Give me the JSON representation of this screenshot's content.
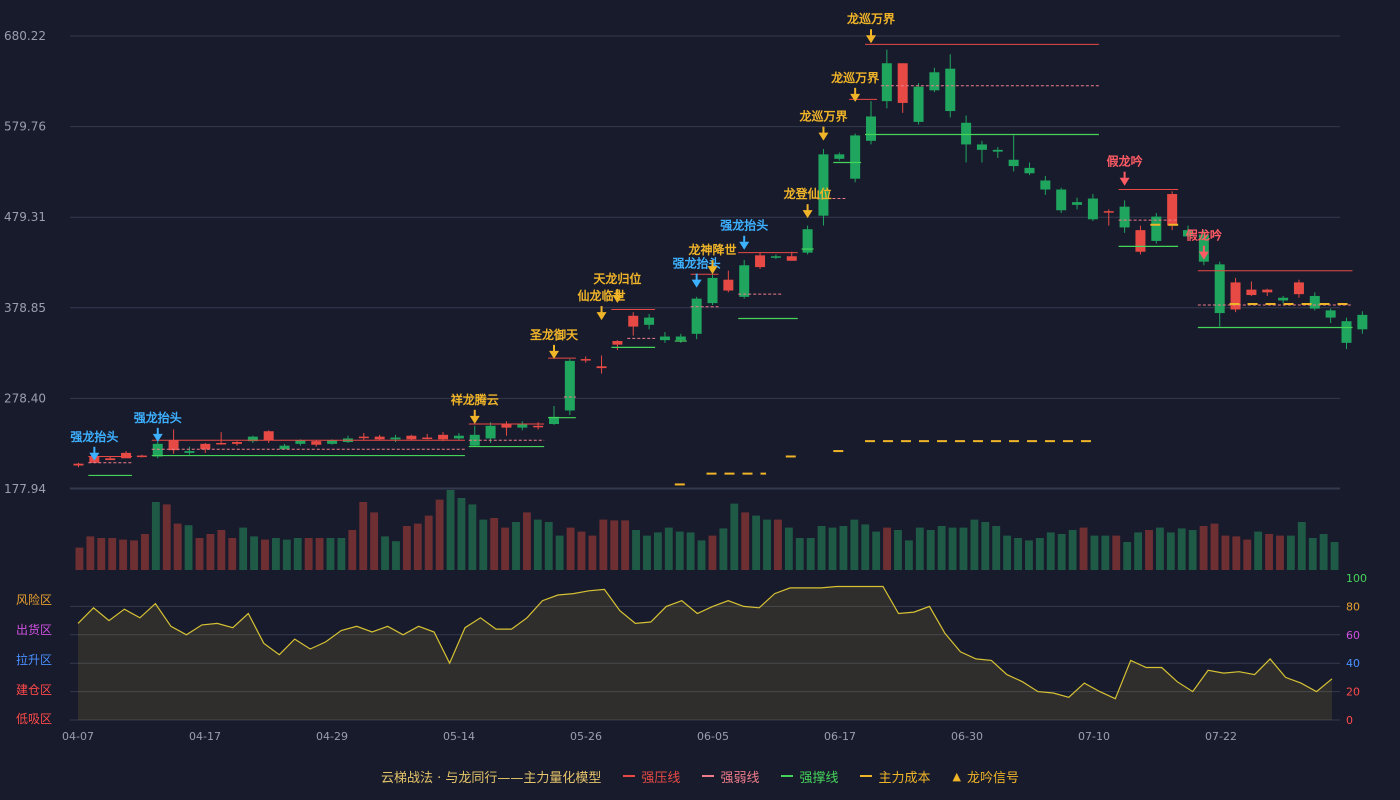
{
  "chart_data": {
    "type": "candlestick",
    "price_ticks": [
      "680.22",
      "579.76",
      "479.31",
      "378.85",
      "278.40",
      "177.94"
    ],
    "ylim": [
      177.94,
      680.22
    ],
    "date_ticks": [
      "04-07",
      "04-17",
      "04-29",
      "05-14",
      "05-26",
      "06-05",
      "06-17",
      "06-30",
      "07-10",
      "07-22"
    ],
    "candles": [
      [
        204,
        206,
        202,
        207
      ],
      [
        207,
        214,
        208,
        216
      ],
      [
        210,
        212,
        211,
        214
      ],
      [
        212,
        218,
        213,
        220
      ],
      [
        214,
        215,
        213,
        216
      ],
      [
        228,
        214,
        212,
        231
      ],
      [
        221,
        232,
        217,
        244
      ],
      [
        220,
        218,
        216,
        225
      ],
      [
        222,
        228,
        218,
        229
      ],
      [
        228,
        229,
        227,
        241
      ],
      [
        228,
        230,
        226,
        231
      ],
      [
        236,
        231,
        229,
        237
      ],
      [
        232,
        242,
        229,
        243
      ],
      [
        226,
        222,
        222,
        228
      ],
      [
        232,
        228,
        226,
        233
      ],
      [
        227,
        231,
        225,
        232
      ],
      [
        232,
        228,
        227,
        233
      ],
      [
        234,
        230,
        229,
        237
      ],
      [
        235,
        236,
        232,
        240
      ],
      [
        233,
        236,
        232,
        238
      ],
      [
        235,
        233,
        230,
        238
      ],
      [
        233,
        237,
        232,
        238
      ],
      [
        235,
        235,
        233,
        239
      ],
      [
        233,
        238,
        231,
        241
      ],
      [
        237,
        234,
        232,
        240
      ],
      [
        238,
        226,
        225,
        248
      ],
      [
        248,
        234,
        229,
        252
      ],
      [
        246,
        250,
        237,
        253
      ],
      [
        250,
        246,
        243,
        253
      ],
      [
        248,
        248,
        244,
        252
      ],
      [
        258,
        250,
        249,
        270
      ],
      [
        320,
        265,
        260,
        322
      ],
      [
        321,
        322,
        318,
        325
      ],
      [
        312,
        314,
        306,
        326
      ],
      [
        338,
        342,
        332,
        343
      ],
      [
        358,
        370,
        348,
        374
      ],
      [
        368,
        360,
        355,
        372
      ],
      [
        347,
        343,
        340,
        352
      ],
      [
        347,
        343,
        340,
        350
      ],
      [
        389,
        350,
        344,
        391
      ],
      [
        412,
        384,
        382,
        420
      ],
      [
        398,
        410,
        396,
        420
      ],
      [
        426,
        391,
        389,
        432
      ],
      [
        424,
        437,
        422,
        440
      ],
      [
        436,
        435,
        433,
        438
      ],
      [
        431,
        436,
        433,
        441
      ],
      [
        466,
        440,
        438,
        470
      ],
      [
        549,
        481,
        470,
        555
      ],
      [
        549,
        544,
        542,
        551
      ],
      [
        570,
        522,
        518,
        572
      ],
      [
        591,
        564,
        560,
        608
      ],
      [
        650,
        608,
        600,
        665
      ],
      [
        606,
        650,
        595,
        650
      ],
      [
        624,
        585,
        582,
        628
      ],
      [
        640,
        620,
        618,
        645
      ],
      [
        644,
        597,
        590,
        660
      ],
      [
        584,
        560,
        540,
        592
      ],
      [
        560,
        554,
        540,
        564
      ],
      [
        554,
        552,
        545,
        557
      ],
      [
        543,
        536,
        530,
        570
      ],
      [
        534,
        528,
        526,
        540
      ],
      [
        520,
        510,
        504,
        525
      ],
      [
        510,
        487,
        484,
        512
      ],
      [
        496,
        493,
        488,
        501
      ],
      [
        500,
        477,
        475,
        505
      ],
      [
        485,
        486,
        470,
        488
      ],
      [
        491,
        468,
        462,
        498
      ],
      [
        441,
        465,
        438,
        470
      ],
      [
        480,
        453,
        450,
        484
      ],
      [
        470,
        505,
        465,
        508
      ],
      [
        465,
        458,
        454,
        470
      ],
      [
        460,
        430,
        426,
        465
      ],
      [
        427,
        373,
        358,
        430
      ],
      [
        377,
        407,
        374,
        412
      ],
      [
        393,
        399,
        392,
        408
      ],
      [
        396,
        399,
        392,
        400
      ],
      [
        390,
        387,
        384,
        392
      ],
      [
        394,
        407,
        390,
        410
      ],
      [
        392,
        378,
        376,
        396
      ],
      [
        376,
        368,
        362,
        378
      ],
      [
        364,
        340,
        333,
        368
      ],
      [
        371,
        355,
        350,
        375
      ]
    ],
    "volume": [
      28,
      42,
      40,
      40,
      38,
      37,
      45,
      85,
      82,
      58,
      56,
      40,
      45,
      50,
      40,
      53,
      42,
      38,
      40,
      38,
      40,
      40,
      40,
      40,
      40,
      50,
      85,
      72,
      42,
      36,
      55,
      58,
      68,
      88,
      100,
      90,
      82,
      63,
      65,
      53,
      60,
      72,
      63,
      60,
      43,
      53,
      48,
      43,
      63,
      62,
      62,
      50,
      43,
      47,
      53,
      48,
      47,
      37,
      43,
      52,
      83,
      72,
      68,
      63,
      63,
      53,
      40,
      40,
      55,
      53,
      55,
      63,
      57,
      48,
      53,
      50,
      37,
      53,
      50,
      55,
      53,
      53,
      63,
      60,
      55,
      43,
      40,
      37,
      40,
      47,
      45,
      50,
      53,
      43,
      43,
      43,
      35,
      47,
      50,
      53,
      47,
      52,
      50,
      55,
      58,
      43,
      42,
      38,
      48,
      45,
      43,
      43,
      60,
      40,
      45,
      35
    ],
    "risk": [
      68,
      79,
      70,
      78,
      72,
      82,
      66,
      60,
      67,
      68,
      65,
      75,
      54,
      46,
      57,
      50,
      55,
      63,
      66,
      62,
      66,
      60,
      66,
      62,
      40,
      65,
      72,
      64,
      64,
      72,
      84,
      88,
      89,
      91,
      92,
      77,
      68,
      69,
      80,
      84,
      75,
      80,
      84,
      80,
      79,
      89,
      93,
      93,
      93,
      94,
      94,
      94,
      94,
      75,
      76,
      80,
      61,
      48,
      43,
      42,
      32,
      27,
      20,
      19,
      16,
      26,
      20,
      15,
      42,
      37,
      37,
      27,
      20,
      35,
      33,
      34,
      32,
      43,
      30,
      26,
      20,
      29
    ],
    "risk_scale": [
      "100",
      "80",
      "60",
      "40",
      "20",
      "0"
    ],
    "zones": [
      "风险区",
      "出货区",
      "拉升区",
      "建仓区",
      "低吸区"
    ],
    "signals": [
      {
        "i": 1,
        "label": "强龙抬头",
        "type": "blue",
        "price": 207
      },
      {
        "i": 5,
        "label": "强龙抬头",
        "type": "blue",
        "price": 228
      },
      {
        "i": 25,
        "label": "祥龙腾云",
        "type": "gold",
        "price": 248
      },
      {
        "i": 30,
        "label": "圣龙御天",
        "type": "gold",
        "price": 320
      },
      {
        "i": 33,
        "label": "仙龙临世",
        "type": "gold",
        "price": 363
      },
      {
        "i": 34,
        "label": "天龙归位",
        "type": "gold",
        "price": 382
      },
      {
        "i": 39,
        "label": "强龙抬头",
        "type": "blue",
        "price": 399
      },
      {
        "i": 40,
        "label": "龙神降世",
        "type": "gold",
        "price": 414
      },
      {
        "i": 42,
        "label": "强龙抬头",
        "type": "blue",
        "price": 441
      },
      {
        "i": 46,
        "label": "龙登仙位",
        "type": "gold",
        "price": 476
      },
      {
        "i": 47,
        "label": "龙巡万界",
        "type": "gold",
        "price": 562
      },
      {
        "i": 49,
        "label": "龙巡万界",
        "type": "gold",
        "price": 605
      },
      {
        "i": 50,
        "label": "龙巡万界",
        "type": "gold",
        "price": 670
      },
      {
        "i": 66,
        "label": "假龙吟",
        "type": "red",
        "price": 512
      },
      {
        "i": 71,
        "label": "假龙吟",
        "type": "red",
        "price": 430
      }
    ],
    "resistance": [
      {
        "s": 1,
        "e": 3,
        "p": 214
      },
      {
        "s": 5,
        "e": 24,
        "p": 232
      },
      {
        "s": 25,
        "e": 29,
        "p": 250
      },
      {
        "s": 30,
        "e": 31,
        "p": 323
      },
      {
        "s": 34,
        "e": 36,
        "p": 377
      },
      {
        "s": 39,
        "e": 40,
        "p": 416
      },
      {
        "s": 42,
        "e": 45,
        "p": 440
      },
      {
        "s": 49,
        "e": 50,
        "p": 610
      },
      {
        "s": 50,
        "e": 64,
        "p": 671
      },
      {
        "s": 66,
        "e": 69,
        "p": 510
      },
      {
        "s": 71,
        "e": 80,
        "p": 420
      }
    ],
    "weak": [
      {
        "s": 1,
        "e": 3,
        "p": 207
      },
      {
        "s": 5,
        "e": 24,
        "p": 222
      },
      {
        "s": 25,
        "e": 29,
        "p": 232
      },
      {
        "s": 31,
        "e": 31,
        "p": 280
      },
      {
        "s": 35,
        "e": 36,
        "p": 345
      },
      {
        "s": 39,
        "e": 40,
        "p": 380
      },
      {
        "s": 42,
        "e": 44,
        "p": 394
      },
      {
        "s": 47,
        "e": 48,
        "p": 500
      },
      {
        "s": 51,
        "e": 64,
        "p": 625
      },
      {
        "s": 66,
        "e": 69,
        "p": 476
      },
      {
        "s": 71,
        "e": 80,
        "p": 382
      }
    ],
    "support": [
      {
        "s": 1,
        "e": 3,
        "p": 193
      },
      {
        "s": 5,
        "e": 24,
        "p": 215
      },
      {
        "s": 25,
        "e": 29,
        "p": 225
      },
      {
        "s": 30,
        "e": 31,
        "p": 257
      },
      {
        "s": 34,
        "e": 36,
        "p": 335
      },
      {
        "s": 38,
        "e": 38,
        "p": 342
      },
      {
        "s": 42,
        "e": 45,
        "p": 367
      },
      {
        "s": 46,
        "e": 46,
        "p": 444
      },
      {
        "s": 48,
        "e": 49,
        "p": 540
      },
      {
        "s": 50,
        "e": 64,
        "p": 571
      },
      {
        "s": 66,
        "e": 69,
        "p": 447
      },
      {
        "s": 71,
        "e": 80,
        "p": 357
      }
    ],
    "cost": [
      {
        "s": 38,
        "e": 38,
        "p": 183
      },
      {
        "s": 40,
        "e": 43,
        "p": 195
      },
      {
        "s": 45,
        "e": 45,
        "p": 214
      },
      {
        "s": 48,
        "e": 48,
        "p": 220
      },
      {
        "s": 50,
        "e": 64,
        "p": 231
      },
      {
        "s": 68,
        "e": 69,
        "p": 471
      },
      {
        "s": 73,
        "e": 80,
        "p": 383
      }
    ],
    "colors": {
      "up": "#e74a44",
      "down": "#1fa55e",
      "up_vol": "#6e2f33",
      "down_vol": "#1e5a45",
      "gold": "#f0b429",
      "blue": "#3db0ff",
      "red_signal": "#ff5b64",
      "risk_line": "#d6c134",
      "support": "#45d45a",
      "grid": "#343a4e"
    },
    "legend": {
      "title": "云梯战法 · 与龙同行——主力量化模型",
      "resistance": "强压线",
      "weak": "强弱线",
      "support": "强撑线",
      "cost": "主力成本",
      "signal": "龙吟信号"
    }
  }
}
